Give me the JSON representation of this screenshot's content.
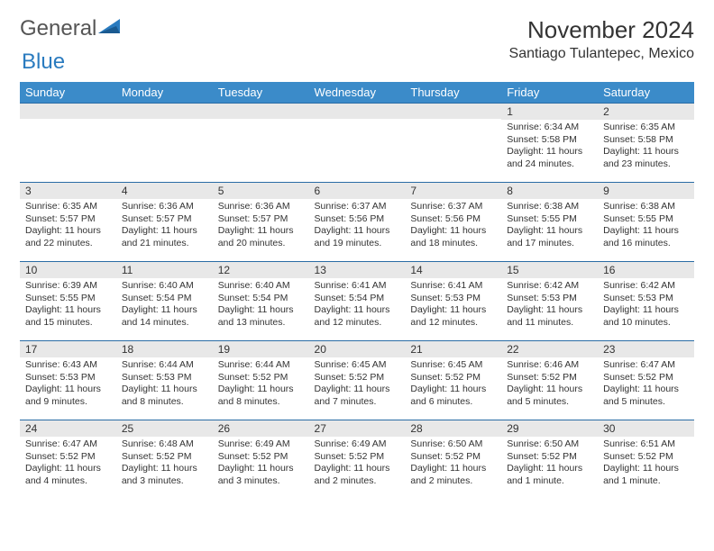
{
  "logo": {
    "word1": "General",
    "word2": "Blue"
  },
  "title": "November 2024",
  "location": "Santiago Tulantepec, Mexico",
  "header_bg": "#3b8bc9",
  "header_fg": "#ffffff",
  "divider_color": "#2a6ca5",
  "daynum_bg": "#e8e8e8",
  "weekdays": [
    "Sunday",
    "Monday",
    "Tuesday",
    "Wednesday",
    "Thursday",
    "Friday",
    "Saturday"
  ],
  "weeks": [
    [
      {
        "n": "",
        "sr": "",
        "ss": "",
        "dl": ""
      },
      {
        "n": "",
        "sr": "",
        "ss": "",
        "dl": ""
      },
      {
        "n": "",
        "sr": "",
        "ss": "",
        "dl": ""
      },
      {
        "n": "",
        "sr": "",
        "ss": "",
        "dl": ""
      },
      {
        "n": "",
        "sr": "",
        "ss": "",
        "dl": ""
      },
      {
        "n": "1",
        "sr": "Sunrise: 6:34 AM",
        "ss": "Sunset: 5:58 PM",
        "dl": "Daylight: 11 hours and 24 minutes."
      },
      {
        "n": "2",
        "sr": "Sunrise: 6:35 AM",
        "ss": "Sunset: 5:58 PM",
        "dl": "Daylight: 11 hours and 23 minutes."
      }
    ],
    [
      {
        "n": "3",
        "sr": "Sunrise: 6:35 AM",
        "ss": "Sunset: 5:57 PM",
        "dl": "Daylight: 11 hours and 22 minutes."
      },
      {
        "n": "4",
        "sr": "Sunrise: 6:36 AM",
        "ss": "Sunset: 5:57 PM",
        "dl": "Daylight: 11 hours and 21 minutes."
      },
      {
        "n": "5",
        "sr": "Sunrise: 6:36 AM",
        "ss": "Sunset: 5:57 PM",
        "dl": "Daylight: 11 hours and 20 minutes."
      },
      {
        "n": "6",
        "sr": "Sunrise: 6:37 AM",
        "ss": "Sunset: 5:56 PM",
        "dl": "Daylight: 11 hours and 19 minutes."
      },
      {
        "n": "7",
        "sr": "Sunrise: 6:37 AM",
        "ss": "Sunset: 5:56 PM",
        "dl": "Daylight: 11 hours and 18 minutes."
      },
      {
        "n": "8",
        "sr": "Sunrise: 6:38 AM",
        "ss": "Sunset: 5:55 PM",
        "dl": "Daylight: 11 hours and 17 minutes."
      },
      {
        "n": "9",
        "sr": "Sunrise: 6:38 AM",
        "ss": "Sunset: 5:55 PM",
        "dl": "Daylight: 11 hours and 16 minutes."
      }
    ],
    [
      {
        "n": "10",
        "sr": "Sunrise: 6:39 AM",
        "ss": "Sunset: 5:55 PM",
        "dl": "Daylight: 11 hours and 15 minutes."
      },
      {
        "n": "11",
        "sr": "Sunrise: 6:40 AM",
        "ss": "Sunset: 5:54 PM",
        "dl": "Daylight: 11 hours and 14 minutes."
      },
      {
        "n": "12",
        "sr": "Sunrise: 6:40 AM",
        "ss": "Sunset: 5:54 PM",
        "dl": "Daylight: 11 hours and 13 minutes."
      },
      {
        "n": "13",
        "sr": "Sunrise: 6:41 AM",
        "ss": "Sunset: 5:54 PM",
        "dl": "Daylight: 11 hours and 12 minutes."
      },
      {
        "n": "14",
        "sr": "Sunrise: 6:41 AM",
        "ss": "Sunset: 5:53 PM",
        "dl": "Daylight: 11 hours and 12 minutes."
      },
      {
        "n": "15",
        "sr": "Sunrise: 6:42 AM",
        "ss": "Sunset: 5:53 PM",
        "dl": "Daylight: 11 hours and 11 minutes."
      },
      {
        "n": "16",
        "sr": "Sunrise: 6:42 AM",
        "ss": "Sunset: 5:53 PM",
        "dl": "Daylight: 11 hours and 10 minutes."
      }
    ],
    [
      {
        "n": "17",
        "sr": "Sunrise: 6:43 AM",
        "ss": "Sunset: 5:53 PM",
        "dl": "Daylight: 11 hours and 9 minutes."
      },
      {
        "n": "18",
        "sr": "Sunrise: 6:44 AM",
        "ss": "Sunset: 5:53 PM",
        "dl": "Daylight: 11 hours and 8 minutes."
      },
      {
        "n": "19",
        "sr": "Sunrise: 6:44 AM",
        "ss": "Sunset: 5:52 PM",
        "dl": "Daylight: 11 hours and 8 minutes."
      },
      {
        "n": "20",
        "sr": "Sunrise: 6:45 AM",
        "ss": "Sunset: 5:52 PM",
        "dl": "Daylight: 11 hours and 7 minutes."
      },
      {
        "n": "21",
        "sr": "Sunrise: 6:45 AM",
        "ss": "Sunset: 5:52 PM",
        "dl": "Daylight: 11 hours and 6 minutes."
      },
      {
        "n": "22",
        "sr": "Sunrise: 6:46 AM",
        "ss": "Sunset: 5:52 PM",
        "dl": "Daylight: 11 hours and 5 minutes."
      },
      {
        "n": "23",
        "sr": "Sunrise: 6:47 AM",
        "ss": "Sunset: 5:52 PM",
        "dl": "Daylight: 11 hours and 5 minutes."
      }
    ],
    [
      {
        "n": "24",
        "sr": "Sunrise: 6:47 AM",
        "ss": "Sunset: 5:52 PM",
        "dl": "Daylight: 11 hours and 4 minutes."
      },
      {
        "n": "25",
        "sr": "Sunrise: 6:48 AM",
        "ss": "Sunset: 5:52 PM",
        "dl": "Daylight: 11 hours and 3 minutes."
      },
      {
        "n": "26",
        "sr": "Sunrise: 6:49 AM",
        "ss": "Sunset: 5:52 PM",
        "dl": "Daylight: 11 hours and 3 minutes."
      },
      {
        "n": "27",
        "sr": "Sunrise: 6:49 AM",
        "ss": "Sunset: 5:52 PM",
        "dl": "Daylight: 11 hours and 2 minutes."
      },
      {
        "n": "28",
        "sr": "Sunrise: 6:50 AM",
        "ss": "Sunset: 5:52 PM",
        "dl": "Daylight: 11 hours and 2 minutes."
      },
      {
        "n": "29",
        "sr": "Sunrise: 6:50 AM",
        "ss": "Sunset: 5:52 PM",
        "dl": "Daylight: 11 hours and 1 minute."
      },
      {
        "n": "30",
        "sr": "Sunrise: 6:51 AM",
        "ss": "Sunset: 5:52 PM",
        "dl": "Daylight: 11 hours and 1 minute."
      }
    ]
  ]
}
